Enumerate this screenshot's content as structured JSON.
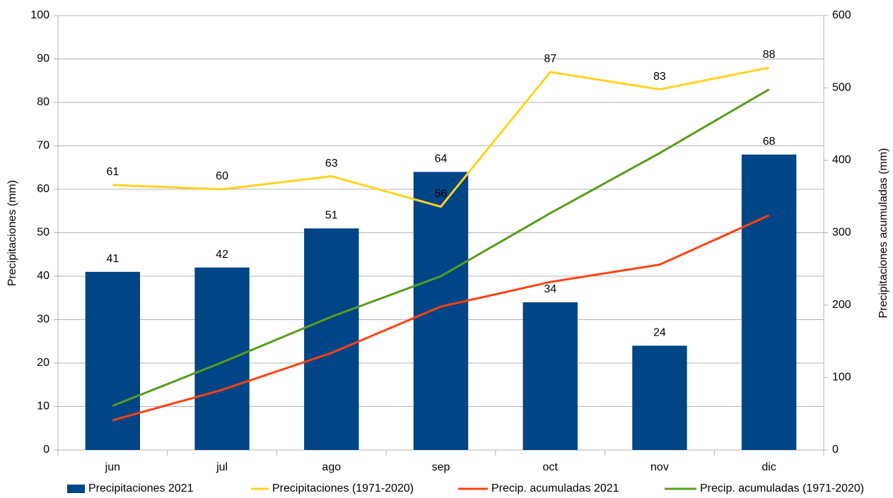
{
  "chart_data": {
    "type": "bar",
    "categories": [
      "jun",
      "jul",
      "ago",
      "sep",
      "oct",
      "nov",
      "dic"
    ],
    "y_label": "Precipitaciones (mm)",
    "y2_label": "Precipitaciones acumuladas (mm)",
    "ylim": [
      0,
      100
    ],
    "yticks": [
      0,
      10,
      20,
      30,
      40,
      50,
      60,
      70,
      80,
      90,
      100
    ],
    "y2lim": [
      0,
      600
    ],
    "y2ticks": [
      0,
      100,
      200,
      300,
      400,
      500,
      600
    ],
    "grid": true,
    "legend": "bottom",
    "series": [
      {
        "name": "Precipitaciones 2021",
        "type": "bar",
        "color": "#004586",
        "labels": true,
        "values": [
          41,
          42,
          51,
          64,
          34,
          24,
          68
        ]
      },
      {
        "name": "Precipitaciones (1971-2020)",
        "type": "line",
        "color": "#ffd320",
        "labels": true,
        "values": [
          61,
          60,
          63,
          56,
          87,
          83,
          88
        ]
      },
      {
        "name": "Precip. acumuladas 2021",
        "type": "line",
        "color": "#ff420e",
        "axis": "y2",
        "values": [
          41,
          83,
          134,
          198,
          232,
          256,
          324
        ]
      },
      {
        "name": "Precip. acumuladas (1971-2020)",
        "type": "line",
        "color": "#579d1c",
        "axis": "y2",
        "values": [
          61,
          121,
          184,
          240,
          327,
          410,
          498
        ]
      }
    ]
  }
}
